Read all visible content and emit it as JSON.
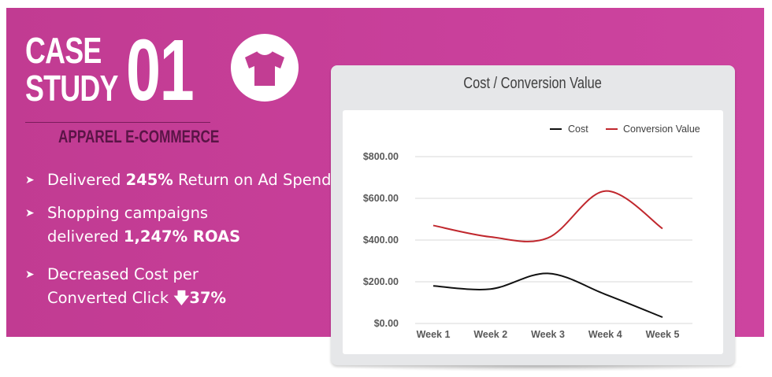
{
  "case_study": {
    "line1": "CASE",
    "line2": "STUDY",
    "number": "01",
    "subtitle": "APPAREL E-COMMERCE"
  },
  "bullets": [
    {
      "pre": "Delivered ",
      "bold": "245%",
      "post": " Return on Ad Spend"
    },
    {
      "line1": "Shopping campaigns",
      "pre": "delivered ",
      "bold": "1,247% ROAS"
    },
    {
      "line1": "Decreased Cost per",
      "pre": "Converted Click ",
      "bold": "37%"
    }
  ],
  "icons": {
    "shirt": "t-shirt-icon",
    "bullet": "arrowhead-icon",
    "down": "down-arrow-icon"
  },
  "colors": {
    "banner": "#c8409a",
    "cost": "#111111",
    "conversion": "#c0272d",
    "subtitle": "#5a1446"
  },
  "chart_data": {
    "type": "line",
    "title": "Cost / Conversion Value",
    "categories": [
      "Week 1",
      "Week 2",
      "Week 3",
      "Week 4",
      "Week 5"
    ],
    "series": [
      {
        "name": "Cost",
        "values": [
          180,
          165,
          240,
          140,
          30
        ]
      },
      {
        "name": "Conversion Value",
        "values": [
          470,
          415,
          410,
          635,
          455
        ]
      }
    ],
    "yticks": [
      "$0.00",
      "$200.00",
      "$400.00",
      "$600.00",
      "$800.00"
    ],
    "ylim": [
      0,
      800
    ],
    "grid": true,
    "legend": "top-right"
  }
}
